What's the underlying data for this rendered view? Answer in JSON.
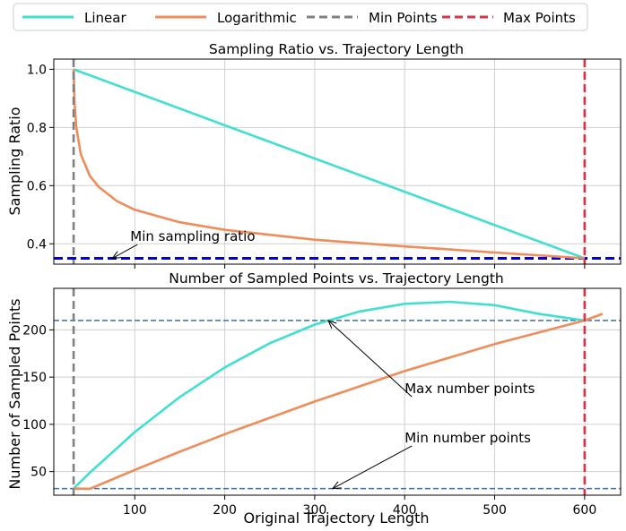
{
  "legend": [
    {
      "label": "Linear",
      "color": "#40e0d0",
      "dash": "solid"
    },
    {
      "label": "Logarithmic",
      "color": "#f08c5a",
      "dash": "solid"
    },
    {
      "label": "Min Points",
      "color": "#808080",
      "dash": "dashed"
    },
    {
      "label": "Max Points",
      "color": "#dc3246",
      "dash": "dashed"
    }
  ],
  "chart_data": [
    {
      "type": "line",
      "title": "Sampling Ratio vs. Trajectory Length",
      "xlabel": "",
      "ylabel": "Sampling Ratio",
      "xlim": [
        10,
        640
      ],
      "ylim": [
        0.33,
        1.035
      ],
      "xticks": [
        100,
        200,
        300,
        400,
        500,
        600
      ],
      "yticks": [
        0.4,
        0.6,
        0.8,
        1.0
      ],
      "ytick_labels": [
        "0.4",
        "0.6",
        "0.8",
        "1.0"
      ],
      "grid": true,
      "legend_position": "top, outside",
      "series": [
        {
          "name": "Linear",
          "x": [
            32,
            600
          ],
          "y": [
            1.0,
            0.35
          ]
        },
        {
          "name": "Logarithmic",
          "x": [
            32,
            33,
            35,
            40,
            50,
            60,
            80,
            100,
            150,
            200,
            300,
            400,
            500,
            600
          ],
          "y": [
            1.0,
            0.883,
            0.8,
            0.708,
            0.634,
            0.595,
            0.547,
            0.517,
            0.474,
            0.448,
            0.414,
            0.391,
            0.37,
            0.35
          ]
        }
      ],
      "vlines": [
        {
          "name": "Min Points",
          "x": 32
        },
        {
          "name": "Max Points",
          "x": 600
        }
      ],
      "hlines": [
        {
          "y": 0.35,
          "color": "#0000dd"
        }
      ],
      "annotations": [
        {
          "text": "Min sampling ratio",
          "text_x": 95,
          "text_y": 0.41,
          "arrow_x": 75,
          "arrow_y": 0.35
        }
      ]
    },
    {
      "type": "line",
      "title": "Number of Sampled Points vs. Trajectory Length",
      "xlabel": "Original Trajectory Length",
      "ylabel": "Number of Sampled Points",
      "xlim": [
        10,
        640
      ],
      "ylim": [
        25,
        244
      ],
      "xticks": [
        100,
        200,
        300,
        400,
        500,
        600
      ],
      "yticks": [
        50,
        100,
        150,
        200
      ],
      "ytick_labels": [
        "50",
        "100",
        "150",
        "200"
      ],
      "grid": true,
      "series": [
        {
          "name": "Linear",
          "x": [
            32,
            50,
            100,
            150,
            200,
            250,
            300,
            350,
            400,
            450,
            500,
            550,
            600
          ],
          "y": [
            32,
            48.8,
            91.8,
            128.9,
            160.3,
            185.9,
            205.6,
            219.5,
            227.6,
            229.8,
            226.2,
            216.8,
            210
          ]
        },
        {
          "name": "Logarithmic",
          "x": [
            32,
            50,
            100,
            150,
            200,
            300,
            400,
            500,
            600,
            620
          ],
          "y": [
            32,
            31.7,
            51.7,
            71.1,
            89.6,
            124.2,
            156.4,
            185.0,
            210,
            217
          ]
        }
      ],
      "vlines": [
        {
          "name": "Min Points",
          "x": 32
        },
        {
          "name": "Max Points",
          "x": 600
        }
      ],
      "hlines": [
        {
          "y": 210,
          "color": "#3a6fb5"
        },
        {
          "y": 32,
          "color": "#3a6fb5"
        }
      ],
      "annotations": [
        {
          "text": "Max number points",
          "text_x": 400,
          "text_y": 133,
          "arrow_x": 315,
          "arrow_y": 210
        },
        {
          "text": "Min number points",
          "text_x": 400,
          "text_y": 81,
          "arrow_x": 320,
          "arrow_y": 32
        }
      ]
    }
  ]
}
